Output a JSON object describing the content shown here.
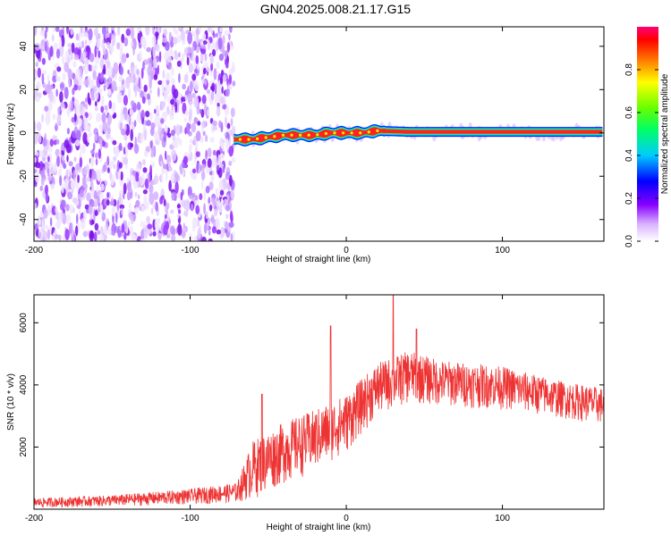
{
  "title": "GN04.2025.008.21.17.G15",
  "chart_data": [
    {
      "type": "heatmap",
      "xlabel": "Height of straight line (km)",
      "ylabel": "Frequency (Hz)",
      "xlim": [
        -200,
        165
      ],
      "ylim": [
        -50,
        49
      ],
      "xticks": [
        -200,
        -100,
        0,
        100
      ],
      "yticks": [
        -40,
        -20,
        0,
        20,
        40
      ],
      "noise_region_x": [
        -200,
        -72
      ],
      "signal_band": {
        "x_start": -72,
        "x_end": 165,
        "center_hz": [
          {
            "x": -72,
            "y": -3
          },
          {
            "x": -60,
            "y": -3
          },
          {
            "x": -50,
            "y": -2
          },
          {
            "x": -40,
            "y": -1
          },
          {
            "x": -30,
            "y": -1
          },
          {
            "x": -20,
            "y": -1
          },
          {
            "x": -10,
            "y": 0
          },
          {
            "x": 0,
            "y": 0
          },
          {
            "x": 10,
            "y": 0
          },
          {
            "x": 20,
            "y": 1
          },
          {
            "x": 40,
            "y": 0.5
          },
          {
            "x": 80,
            "y": 0.5
          },
          {
            "x": 165,
            "y": 0.5
          }
        ]
      },
      "colorbar": {
        "label": "Normalized spectral amplitude",
        "range": [
          0,
          1
        ],
        "ticks": [
          "0.0",
          "0.2",
          "0.4",
          "0.6",
          "0.8"
        ]
      }
    },
    {
      "type": "line",
      "xlabel": "Height of straight line (km)",
      "ylabel": "SNR (10 * v/v)",
      "xlim": [
        -200,
        165
      ],
      "ylim": [
        0,
        6900
      ],
      "xticks": [
        -200,
        -100,
        0,
        100
      ],
      "yticks": [
        2000,
        4000,
        6000
      ],
      "color": "#ee3333",
      "series": [
        {
          "envelope": [
            {
              "x": -200,
              "lo": 50,
              "hi": 350
            },
            {
              "x": -150,
              "lo": 80,
              "hi": 450
            },
            {
              "x": -100,
              "lo": 150,
              "hi": 650
            },
            {
              "x": -70,
              "lo": 200,
              "hi": 850
            },
            {
              "x": -60,
              "lo": 300,
              "hi": 2200
            },
            {
              "x": -40,
              "lo": 800,
              "hi": 2800
            },
            {
              "x": -20,
              "lo": 1200,
              "hi": 3200
            },
            {
              "x": 0,
              "lo": 1800,
              "hi": 3700
            },
            {
              "x": 20,
              "lo": 3000,
              "hi": 4700
            },
            {
              "x": 40,
              "lo": 3400,
              "hi": 5100
            },
            {
              "x": 60,
              "lo": 3300,
              "hi": 4800
            },
            {
              "x": 100,
              "lo": 3200,
              "hi": 4600
            },
            {
              "x": 140,
              "lo": 2900,
              "hi": 4100
            },
            {
              "x": 165,
              "lo": 2700,
              "hi": 3900
            }
          ],
          "spikes": [
            {
              "x": -54,
              "y": 3700
            },
            {
              "x": -10,
              "y": 5900
            },
            {
              "x": 30,
              "y": 6900
            },
            {
              "x": 45,
              "y": 5800
            }
          ]
        }
      ]
    }
  ]
}
